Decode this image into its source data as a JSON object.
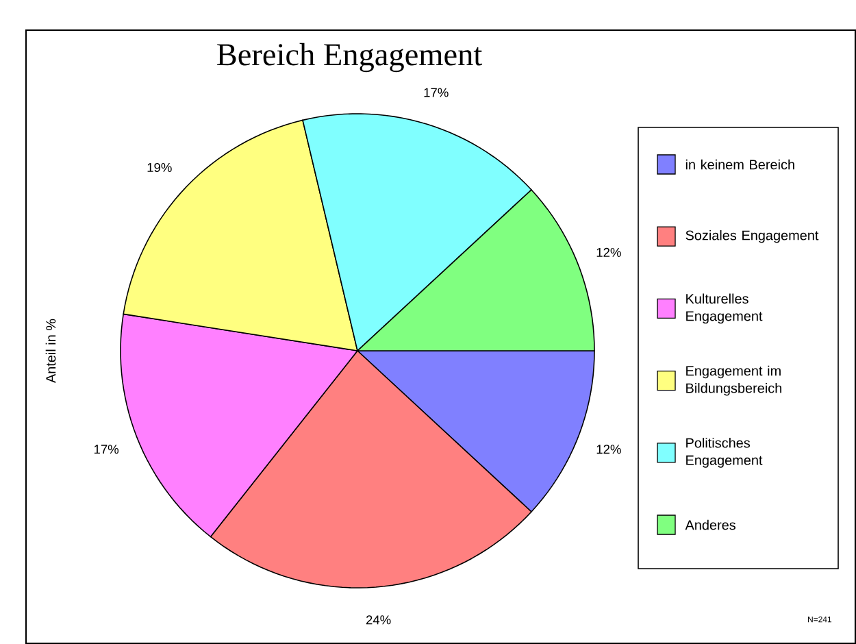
{
  "chart_data": {
    "type": "pie",
    "title": "Bereich Engagement",
    "ylabel": "Anteil in %",
    "categories": [
      "in keinem Bereich",
      "Soziales Engagement",
      "Kulturelles Engagement",
      "Engagement im Bildungsbereich",
      "Politisches Engagement",
      "Anderes"
    ],
    "values": [
      12,
      24,
      17,
      19,
      17,
      12
    ],
    "value_labels": [
      "12%",
      "24%",
      "17%",
      "19%",
      "17%",
      "12%"
    ],
    "colors": [
      "#8080ff",
      "#ff8080",
      "#ff80ff",
      "#ffff80",
      "#80ffff",
      "#80ff80"
    ],
    "legend": "right",
    "annotations": [
      "N=241"
    ]
  }
}
